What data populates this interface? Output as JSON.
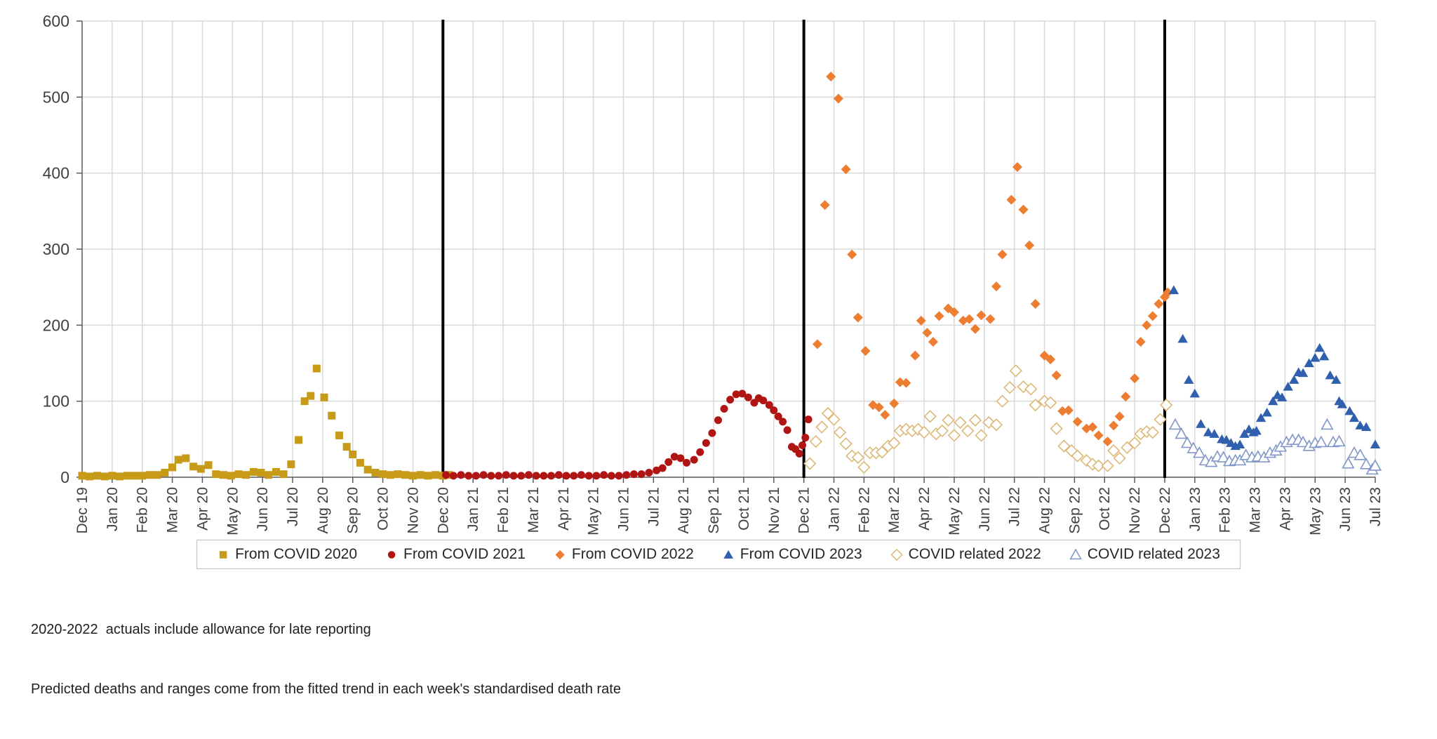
{
  "chart_data": {
    "type": "scatter",
    "title": "",
    "xlabel": "",
    "ylabel": "",
    "grid": true,
    "legend_position": "bottom",
    "x_axis": {
      "unit": "month (0 = Dec 2019, weekly data points as fractional months)",
      "labels": [
        "Dec 19",
        "Jan 20",
        "Feb 20",
        "Mar 20",
        "Apr 20",
        "May 20",
        "Jun 20",
        "Jul 20",
        "Aug 20",
        "Sep 20",
        "Oct 20",
        "Nov 20",
        "Dec 20",
        "Jan 21",
        "Feb 21",
        "Mar 21",
        "Apr 21",
        "May 21",
        "Jun 21",
        "Jul 21",
        "Aug 21",
        "Sep 21",
        "Oct 21",
        "Nov 21",
        "Dec 21",
        "Jan 22",
        "Feb 22",
        "Mar 22",
        "Apr 22",
        "May 22",
        "Jun 22",
        "Jul 22",
        "Aug 22",
        "Sep 22",
        "Oct 22",
        "Nov 22",
        "Dec 22",
        "Jan 23",
        "Feb 23",
        "Mar 23",
        "Apr 23",
        "May 23",
        "Jun 23",
        "Jul 23"
      ]
    },
    "y_axis": {
      "min": 0,
      "max": 600,
      "tick_interval": 100,
      "ticks": [
        0,
        100,
        200,
        300,
        400,
        500,
        600
      ]
    },
    "year_separators": {
      "month_indices": [
        12,
        24,
        36
      ],
      "at_labels": [
        "Dec 20",
        "Dec 21",
        "Dec 22"
      ]
    },
    "series": [
      {
        "id": "from-covid-2020",
        "name": "From COVID 2020",
        "marker": "square",
        "open": false,
        "color": "#C79A18",
        "points": [
          [
            0,
            2
          ],
          [
            0.25,
            1
          ],
          [
            0.5,
            2
          ],
          [
            0.75,
            1
          ],
          [
            1,
            2
          ],
          [
            1.25,
            1
          ],
          [
            1.5,
            2
          ],
          [
            1.75,
            2
          ],
          [
            2,
            2
          ],
          [
            2.25,
            3
          ],
          [
            2.5,
            3
          ],
          [
            2.75,
            6
          ],
          [
            3,
            13
          ],
          [
            3.2,
            23
          ],
          [
            3.45,
            25
          ],
          [
            3.7,
            14
          ],
          [
            3.95,
            11
          ],
          [
            4.2,
            16
          ],
          [
            4.45,
            4
          ],
          [
            4.7,
            3
          ],
          [
            4.95,
            2
          ],
          [
            5.2,
            4
          ],
          [
            5.45,
            3
          ],
          [
            5.7,
            7
          ],
          [
            5.95,
            6
          ],
          [
            6.2,
            3
          ],
          [
            6.45,
            7
          ],
          [
            6.7,
            4
          ],
          [
            6.95,
            17
          ],
          [
            7.2,
            49
          ],
          [
            7.4,
            100
          ],
          [
            7.6,
            107
          ],
          [
            7.8,
            143
          ],
          [
            8.05,
            105
          ],
          [
            8.3,
            81
          ],
          [
            8.55,
            55
          ],
          [
            8.8,
            40
          ],
          [
            9,
            30
          ],
          [
            9.25,
            19
          ],
          [
            9.5,
            10
          ],
          [
            9.75,
            6
          ],
          [
            10,
            4
          ],
          [
            10.25,
            3
          ],
          [
            10.5,
            4
          ],
          [
            10.75,
            3
          ],
          [
            11,
            2
          ],
          [
            11.25,
            3
          ],
          [
            11.5,
            2
          ],
          [
            11.75,
            3
          ],
          [
            12,
            2
          ],
          [
            12.2,
            3
          ]
        ]
      },
      {
        "id": "from-covid-2021",
        "name": "From COVID 2021",
        "marker": "circle",
        "open": false,
        "color": "#B01513",
        "points": [
          [
            12.1,
            3
          ],
          [
            12.35,
            2
          ],
          [
            12.6,
            3
          ],
          [
            12.85,
            2
          ],
          [
            13.1,
            2
          ],
          [
            13.35,
            3
          ],
          [
            13.6,
            2
          ],
          [
            13.85,
            2
          ],
          [
            14.1,
            3
          ],
          [
            14.35,
            2
          ],
          [
            14.6,
            2
          ],
          [
            14.85,
            3
          ],
          [
            15.1,
            2
          ],
          [
            15.35,
            2
          ],
          [
            15.6,
            2
          ],
          [
            15.85,
            3
          ],
          [
            16.1,
            2
          ],
          [
            16.35,
            2
          ],
          [
            16.6,
            3
          ],
          [
            16.85,
            2
          ],
          [
            17.1,
            2
          ],
          [
            17.35,
            3
          ],
          [
            17.6,
            2
          ],
          [
            17.85,
            2
          ],
          [
            18.1,
            3
          ],
          [
            18.35,
            4
          ],
          [
            18.6,
            4
          ],
          [
            18.85,
            6
          ],
          [
            19.1,
            9
          ],
          [
            19.3,
            12
          ],
          [
            19.5,
            20
          ],
          [
            19.7,
            27
          ],
          [
            19.9,
            25
          ],
          [
            20.1,
            19
          ],
          [
            20.35,
            23
          ],
          [
            20.55,
            33
          ],
          [
            20.75,
            45
          ],
          [
            20.95,
            58
          ],
          [
            21.15,
            75
          ],
          [
            21.35,
            90
          ],
          [
            21.55,
            102
          ],
          [
            21.75,
            109
          ],
          [
            21.95,
            110
          ],
          [
            22.15,
            105
          ],
          [
            22.35,
            98
          ],
          [
            22.5,
            104
          ],
          [
            22.65,
            101
          ],
          [
            22.85,
            95
          ],
          [
            23,
            88
          ],
          [
            23.15,
            80
          ],
          [
            23.3,
            73
          ],
          [
            23.45,
            62
          ],
          [
            23.6,
            40
          ],
          [
            23.72,
            37
          ],
          [
            23.85,
            31
          ],
          [
            23.95,
            42
          ],
          [
            24.05,
            52
          ],
          [
            24.15,
            76
          ]
        ]
      },
      {
        "id": "from-covid-2022",
        "name": "From COVID 2022",
        "marker": "diamond",
        "open": false,
        "color": "#ED7D31",
        "points": [
          [
            24.45,
            175
          ],
          [
            24.7,
            358
          ],
          [
            24.9,
            527
          ],
          [
            25.15,
            498
          ],
          [
            25.4,
            405
          ],
          [
            25.6,
            293
          ],
          [
            25.8,
            210
          ],
          [
            26.05,
            166
          ],
          [
            26.3,
            95
          ],
          [
            26.5,
            92
          ],
          [
            26.7,
            82
          ],
          [
            27,
            97
          ],
          [
            27.2,
            125
          ],
          [
            27.4,
            124
          ],
          [
            27.7,
            160
          ],
          [
            27.9,
            206
          ],
          [
            28.1,
            190
          ],
          [
            28.3,
            178
          ],
          [
            28.5,
            212
          ],
          [
            28.8,
            222
          ],
          [
            29,
            217
          ],
          [
            29.3,
            206
          ],
          [
            29.5,
            208
          ],
          [
            29.7,
            195
          ],
          [
            29.9,
            213
          ],
          [
            30.2,
            208
          ],
          [
            30.4,
            251
          ],
          [
            30.6,
            293
          ],
          [
            30.9,
            365
          ],
          [
            31.1,
            408
          ],
          [
            31.3,
            352
          ],
          [
            31.5,
            305
          ],
          [
            31.7,
            228
          ],
          [
            32,
            160
          ],
          [
            32.2,
            155
          ],
          [
            32.4,
            134
          ],
          [
            32.6,
            87
          ],
          [
            32.8,
            88
          ],
          [
            33.1,
            73
          ],
          [
            33.4,
            64
          ],
          [
            33.6,
            66
          ],
          [
            33.8,
            55
          ],
          [
            34.1,
            47
          ],
          [
            34.3,
            68
          ],
          [
            34.5,
            80
          ],
          [
            34.7,
            106
          ],
          [
            35,
            130
          ],
          [
            35.2,
            178
          ],
          [
            35.4,
            200
          ],
          [
            35.6,
            212
          ],
          [
            35.8,
            228
          ],
          [
            36,
            237
          ],
          [
            36.1,
            243
          ]
        ]
      },
      {
        "id": "from-covid-2023",
        "name": "From COVID 2023",
        "marker": "triangle",
        "open": false,
        "color": "#3060AD",
        "points": [
          [
            36.3,
            246
          ],
          [
            36.6,
            182
          ],
          [
            36.8,
            128
          ],
          [
            37,
            110
          ],
          [
            37.2,
            70
          ],
          [
            37.45,
            59
          ],
          [
            37.65,
            57
          ],
          [
            37.9,
            50
          ],
          [
            38.05,
            49
          ],
          [
            38.2,
            45
          ],
          [
            38.35,
            41
          ],
          [
            38.5,
            43
          ],
          [
            38.65,
            57
          ],
          [
            38.8,
            63
          ],
          [
            38.95,
            59
          ],
          [
            39.05,
            61
          ],
          [
            39.2,
            78
          ],
          [
            39.4,
            85
          ],
          [
            39.6,
            100
          ],
          [
            39.75,
            108
          ],
          [
            39.9,
            105
          ],
          [
            40.1,
            119
          ],
          [
            40.3,
            128
          ],
          [
            40.45,
            138
          ],
          [
            40.6,
            137
          ],
          [
            40.8,
            150
          ],
          [
            41,
            157
          ],
          [
            41.15,
            170
          ],
          [
            41.3,
            159
          ],
          [
            41.5,
            134
          ],
          [
            41.7,
            128
          ],
          [
            41.8,
            100
          ],
          [
            41.9,
            96
          ],
          [
            42.15,
            87
          ],
          [
            42.3,
            78
          ],
          [
            42.5,
            68
          ],
          [
            42.7,
            66
          ],
          [
            43,
            43
          ]
        ]
      },
      {
        "id": "covid-related-2022",
        "name": "COVID related 2022",
        "marker": "diamond",
        "open": true,
        "color": "#DDB878",
        "points": [
          [
            24.2,
            18
          ],
          [
            24.4,
            47
          ],
          [
            24.6,
            66
          ],
          [
            24.8,
            84
          ],
          [
            25,
            76
          ],
          [
            25.2,
            59
          ],
          [
            25.4,
            44
          ],
          [
            25.6,
            28
          ],
          [
            25.8,
            26
          ],
          [
            26,
            13
          ],
          [
            26.2,
            32
          ],
          [
            26.4,
            32
          ],
          [
            26.6,
            33
          ],
          [
            26.8,
            41
          ],
          [
            27,
            45
          ],
          [
            27.2,
            61
          ],
          [
            27.4,
            63
          ],
          [
            27.6,
            61
          ],
          [
            27.8,
            63
          ],
          [
            28,
            59
          ],
          [
            28.2,
            80
          ],
          [
            28.4,
            57
          ],
          [
            28.6,
            61
          ],
          [
            28.8,
            75
          ],
          [
            29,
            55
          ],
          [
            29.2,
            72
          ],
          [
            29.45,
            61
          ],
          [
            29.7,
            75
          ],
          [
            29.9,
            55
          ],
          [
            30.15,
            72
          ],
          [
            30.4,
            69
          ],
          [
            30.6,
            100
          ],
          [
            30.85,
            118
          ],
          [
            31.05,
            140
          ],
          [
            31.3,
            119
          ],
          [
            31.55,
            116
          ],
          [
            31.7,
            95
          ],
          [
            32,
            100
          ],
          [
            32.2,
            98
          ],
          [
            32.4,
            64
          ],
          [
            32.65,
            41
          ],
          [
            32.9,
            35
          ],
          [
            33.1,
            28
          ],
          [
            33.4,
            22
          ],
          [
            33.6,
            17
          ],
          [
            33.8,
            15
          ],
          [
            34.1,
            15
          ],
          [
            34.3,
            35
          ],
          [
            34.5,
            25
          ],
          [
            34.75,
            39
          ],
          [
            35,
            45
          ],
          [
            35.2,
            57
          ],
          [
            35.4,
            60
          ],
          [
            35.6,
            59
          ],
          [
            35.85,
            76
          ],
          [
            36.05,
            95
          ]
        ]
      },
      {
        "id": "covid-related-2023",
        "name": "COVID related 2023",
        "marker": "triangle",
        "open": true,
        "color": "#8097C8",
        "points": [
          [
            36.35,
            69
          ],
          [
            36.55,
            57
          ],
          [
            36.75,
            45
          ],
          [
            36.95,
            38
          ],
          [
            37.15,
            32
          ],
          [
            37.35,
            22
          ],
          [
            37.55,
            20
          ],
          [
            37.75,
            27
          ],
          [
            37.95,
            26
          ],
          [
            38.15,
            21
          ],
          [
            38.35,
            22
          ],
          [
            38.5,
            22
          ],
          [
            38.7,
            29
          ],
          [
            38.9,
            26
          ],
          [
            39.1,
            27
          ],
          [
            39.3,
            26
          ],
          [
            39.5,
            32
          ],
          [
            39.7,
            35
          ],
          [
            39.85,
            40
          ],
          [
            40.05,
            46
          ],
          [
            40.25,
            49
          ],
          [
            40.45,
            49
          ],
          [
            40.6,
            46
          ],
          [
            40.8,
            41
          ],
          [
            41,
            45
          ],
          [
            41.2,
            46
          ],
          [
            41.4,
            69
          ],
          [
            41.6,
            46
          ],
          [
            41.8,
            47
          ],
          [
            42.1,
            18
          ],
          [
            42.3,
            32
          ],
          [
            42.5,
            29
          ],
          [
            42.7,
            17
          ],
          [
            42.9,
            10
          ],
          [
            43,
            15
          ]
        ]
      }
    ]
  },
  "colors": {
    "grid": "#D9D9D9",
    "axis": "#595959",
    "separator": "#000000",
    "tick_text": "#404040",
    "legend_border": "#BFBFBF"
  },
  "footnotes": {
    "line1": "2020-2022  actuals include allowance for late reporting",
    "line2": "Predicted deaths and ranges come from the fitted trend in each week's standardised death rate"
  }
}
